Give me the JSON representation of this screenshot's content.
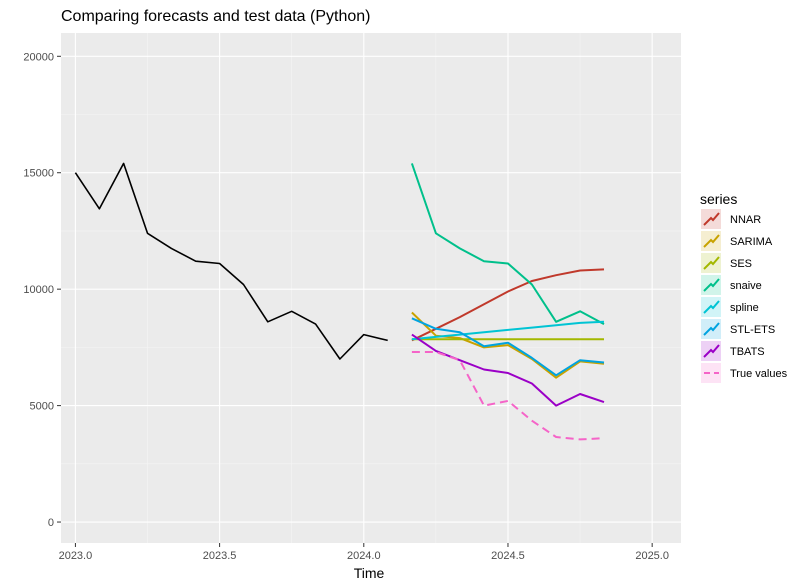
{
  "chart_data": {
    "type": "line",
    "title": "Comparing forecasts and test data (Python)",
    "xlabel": "Time",
    "ylabel": "",
    "xlim": [
      2022.95,
      2025.1
    ],
    "ylim": [
      -900,
      21000
    ],
    "x_ticks": [
      2023.0,
      2023.5,
      2024.0,
      2024.5,
      2025.0
    ],
    "x_tick_labels": [
      "2023.0",
      "2023.5",
      "2024.0",
      "2024.5",
      "2025.0"
    ],
    "y_ticks": [
      0,
      5000,
      10000,
      15000,
      20000
    ],
    "y_tick_labels": [
      "0",
      "5000",
      "10000",
      "15000",
      "20000"
    ],
    "grid": true,
    "legend_position": "right",
    "legend_title": "series",
    "history": {
      "color": "#000000",
      "x": [
        2023.0,
        2023.083,
        2023.167,
        2023.25,
        2023.333,
        2023.417,
        2023.5,
        2023.583,
        2023.667,
        2023.75,
        2023.833,
        2023.917,
        2024.0,
        2024.083
      ],
      "y": [
        15000,
        13450,
        15400,
        12400,
        11750,
        11200,
        11100,
        10200,
        8600,
        9050,
        8500,
        7000,
        8050,
        7800
      ]
    },
    "forecast_x": [
      2024.167,
      2024.25,
      2024.333,
      2024.417,
      2024.5,
      2024.583,
      2024.667,
      2024.75,
      2024.833
    ],
    "series": [
      {
        "name": "NNAR",
        "color": "#c0392b",
        "dashed": false,
        "values": [
          7800,
          8300,
          8800,
          9350,
          9900,
          10350,
          10600,
          10800,
          10850
        ]
      },
      {
        "name": "SARIMA",
        "color": "#c8a200",
        "dashed": false,
        "values": [
          9000,
          8000,
          7900,
          7500,
          7600,
          7000,
          6200,
          6900,
          6800
        ]
      },
      {
        "name": "SES",
        "color": "#a3b800",
        "dashed": false,
        "values": [
          7850,
          7850,
          7850,
          7850,
          7850,
          7850,
          7850,
          7850,
          7850
        ]
      },
      {
        "name": "snaive",
        "color": "#00c08b",
        "dashed": false,
        "values": [
          15400,
          12400,
          11750,
          11200,
          11100,
          10200,
          8600,
          9050,
          8500
        ]
      },
      {
        "name": "spline",
        "color": "#00c4d4",
        "dashed": false,
        "values": [
          7850,
          7950,
          8050,
          8150,
          8250,
          8350,
          8450,
          8550,
          8600
        ]
      },
      {
        "name": "STL-ETS",
        "color": "#00a3e0",
        "dashed": false,
        "values": [
          8750,
          8300,
          8150,
          7550,
          7700,
          7050,
          6300,
          6950,
          6850
        ]
      },
      {
        "name": "TBATS",
        "color": "#9b00c7",
        "dashed": false,
        "values": [
          8050,
          7350,
          6950,
          6550,
          6400,
          5950,
          5000,
          5500,
          5150
        ]
      },
      {
        "name": "True values",
        "color": "#f564c8",
        "dashed": true,
        "values": [
          7300,
          7300,
          6950,
          5000,
          5200,
          4350,
          3650,
          3550,
          3600
        ]
      }
    ]
  }
}
